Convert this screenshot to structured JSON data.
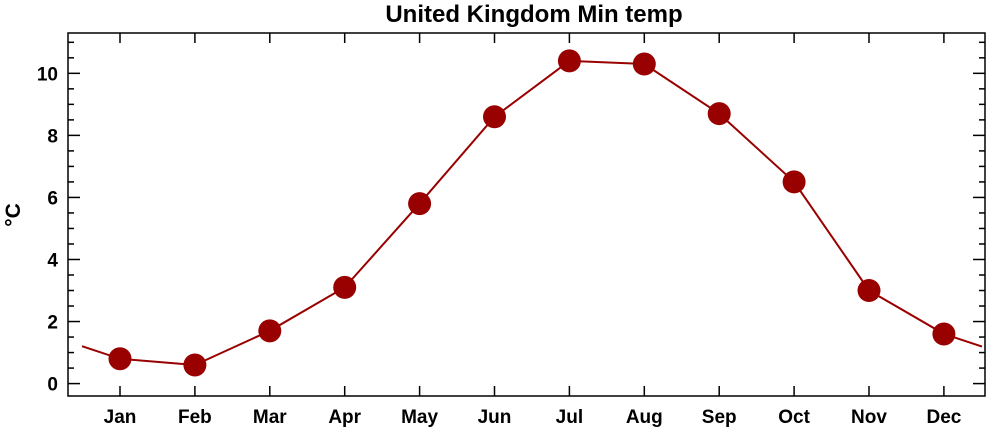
{
  "chart_data": {
    "type": "line",
    "title": "United Kingdom Min temp",
    "xlabel": "",
    "ylabel": "°C",
    "categories": [
      "Jan",
      "Feb",
      "Mar",
      "Apr",
      "May",
      "Jun",
      "Jul",
      "Aug",
      "Sep",
      "Oct",
      "Nov",
      "Dec"
    ],
    "series": [
      {
        "values": [
          0.8,
          0.6,
          1.7,
          3.1,
          5.8,
          8.6,
          10.4,
          10.3,
          8.7,
          6.5,
          3.0,
          1.6
        ]
      }
    ],
    "ylim": [
      -0.4,
      11.3
    ],
    "yticks": [
      "0",
      "2",
      "4",
      "6",
      "8",
      "10"
    ],
    "grid": false,
    "legend": "none",
    "colors": {
      "series": "#990000",
      "axes": "#000000",
      "background": "#ffffff"
    }
  }
}
